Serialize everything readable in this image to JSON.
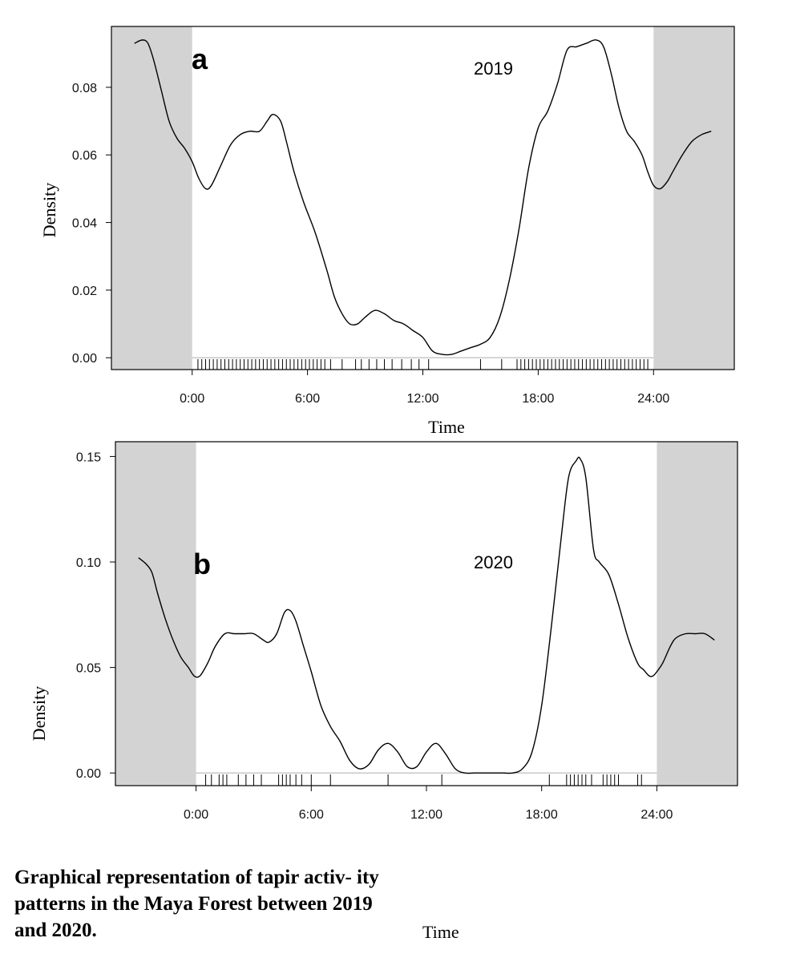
{
  "caption": "Graphical representation of tapir activ- ity patterns in the Maya Forest between 2019 and 2020.",
  "bottom_label": "Time",
  "chart_data": [
    {
      "type": "line",
      "panel": "a",
      "title": "2019",
      "xlabel": "Time",
      "ylabel": "Density",
      "xlim": [
        -4.2,
        28.2
      ],
      "ylim": [
        -0.0035,
        0.098
      ],
      "x_tick_labels": [
        "0:00",
        "6:00",
        "12:00",
        "18:00",
        "24:00"
      ],
      "x_tick_values": [
        0,
        6,
        12,
        18,
        24
      ],
      "y_ticks": [
        0.0,
        0.02,
        0.04,
        0.06,
        0.08
      ],
      "y_tick_labels": [
        "0.00",
        "0.02",
        "0.04",
        "0.06",
        "0.08"
      ],
      "shaded_x_ranges": [
        [
          -4.2,
          0
        ],
        [
          24,
          28.2
        ]
      ],
      "baseline": 0,
      "x": [
        -3.0,
        -2.6,
        -2.3,
        -2.0,
        -1.6,
        -1.2,
        -0.8,
        -0.4,
        0.0,
        0.35,
        0.7,
        1.0,
        1.5,
        2.0,
        2.5,
        3.0,
        3.5,
        3.9,
        4.2,
        4.6,
        4.9,
        5.3,
        5.8,
        6.4,
        7.0,
        7.4,
        7.8,
        8.2,
        8.6,
        9.0,
        9.5,
        10.0,
        10.5,
        11.0,
        11.5,
        12.0,
        12.5,
        13.0,
        13.5,
        14.0,
        14.5,
        15.0,
        15.5,
        16.0,
        16.5,
        17.0,
        17.5,
        18.0,
        18.5,
        19.0,
        19.5,
        20.0,
        20.5,
        21.0,
        21.4,
        21.8,
        22.2,
        22.6,
        23.0,
        23.4,
        23.7,
        24.0,
        24.35,
        24.7,
        25.0,
        25.5,
        26.0,
        26.5,
        27.0
      ],
      "y": [
        0.093,
        0.094,
        0.093,
        0.088,
        0.079,
        0.07,
        0.065,
        0.062,
        0.058,
        0.053,
        0.05,
        0.051,
        0.057,
        0.063,
        0.066,
        0.067,
        0.067,
        0.07,
        0.072,
        0.07,
        0.064,
        0.055,
        0.046,
        0.037,
        0.026,
        0.018,
        0.013,
        0.01,
        0.01,
        0.012,
        0.014,
        0.013,
        0.011,
        0.01,
        0.008,
        0.006,
        0.002,
        0.001,
        0.001,
        0.002,
        0.003,
        0.004,
        0.006,
        0.012,
        0.023,
        0.038,
        0.056,
        0.068,
        0.073,
        0.081,
        0.091,
        0.092,
        0.093,
        0.094,
        0.092,
        0.084,
        0.074,
        0.067,
        0.064,
        0.06,
        0.055,
        0.051,
        0.05,
        0.052,
        0.055,
        0.06,
        0.064,
        0.066,
        0.067
      ],
      "rug": [
        0.3,
        0.5,
        0.7,
        0.9,
        1.1,
        1.3,
        1.5,
        1.7,
        1.9,
        2.1,
        2.3,
        2.5,
        2.7,
        2.9,
        3.1,
        3.3,
        3.5,
        3.7,
        3.9,
        4.1,
        4.3,
        4.5,
        4.7,
        4.9,
        5.1,
        5.3,
        5.5,
        5.7,
        5.9,
        6.1,
        6.3,
        6.5,
        6.7,
        6.9,
        7.2,
        7.8,
        8.5,
        8.8,
        9.2,
        9.6,
        10.0,
        10.4,
        10.9,
        11.4,
        11.8,
        12.3,
        15.0,
        16.1,
        16.9,
        17.1,
        17.3,
        17.5,
        17.7,
        17.9,
        18.1,
        18.3,
        18.5,
        18.7,
        18.9,
        19.1,
        19.3,
        19.5,
        19.7,
        19.9,
        20.1,
        20.3,
        20.5,
        20.7,
        20.9,
        21.1,
        21.3,
        21.5,
        21.7,
        21.9,
        22.1,
        22.3,
        22.5,
        22.7,
        22.9,
        23.1,
        23.3,
        23.5,
        23.7
      ]
    },
    {
      "type": "line",
      "panel": "b",
      "title": "2020",
      "xlabel": "",
      "ylabel": "Density",
      "xlim": [
        -4.2,
        28.2
      ],
      "ylim": [
        -0.006,
        0.157
      ],
      "x_tick_labels": [
        "0:00",
        "6:00",
        "12:00",
        "18:00",
        "24:00"
      ],
      "x_tick_values": [
        0,
        6,
        12,
        18,
        24
      ],
      "y_ticks": [
        0.0,
        0.05,
        0.1,
        0.15
      ],
      "y_tick_labels": [
        "0.00",
        "0.05",
        "0.10",
        "0.15"
      ],
      "shaded_x_ranges": [
        [
          -4.2,
          0
        ],
        [
          24,
          28.2
        ]
      ],
      "baseline": 0,
      "x": [
        -3.0,
        -2.6,
        -2.3,
        -2.0,
        -1.6,
        -1.2,
        -0.8,
        -0.4,
        -0.1,
        0.2,
        0.6,
        1.0,
        1.5,
        2.0,
        2.5,
        3.0,
        3.5,
        3.8,
        4.2,
        4.6,
        4.9,
        5.2,
        5.6,
        6.0,
        6.5,
        7.0,
        7.5,
        8.0,
        8.5,
        9.0,
        9.5,
        10.0,
        10.5,
        11.0,
        11.5,
        12.0,
        12.5,
        13.0,
        13.5,
        14.0,
        14.5,
        15.0,
        15.5,
        16.0,
        16.5,
        17.0,
        17.5,
        18.0,
        18.5,
        19.0,
        19.4,
        19.8,
        20.0,
        20.3,
        20.7,
        21.0,
        21.5,
        22.0,
        22.5,
        23.0,
        23.3,
        23.6,
        23.8,
        24.0,
        24.3,
        24.7,
        25.0,
        25.5,
        26.0,
        26.5,
        27.0
      ],
      "y": [
        0.102,
        0.099,
        0.095,
        0.085,
        0.073,
        0.063,
        0.055,
        0.05,
        0.046,
        0.046,
        0.052,
        0.06,
        0.066,
        0.066,
        0.066,
        0.066,
        0.063,
        0.062,
        0.066,
        0.076,
        0.077,
        0.072,
        0.06,
        0.048,
        0.032,
        0.022,
        0.015,
        0.006,
        0.002,
        0.004,
        0.011,
        0.014,
        0.01,
        0.003,
        0.003,
        0.01,
        0.014,
        0.009,
        0.002,
        0.0,
        0.0,
        0.0,
        0.0,
        0.0,
        0.0,
        0.002,
        0.01,
        0.032,
        0.069,
        0.11,
        0.14,
        0.148,
        0.149,
        0.14,
        0.106,
        0.1,
        0.094,
        0.08,
        0.064,
        0.052,
        0.049,
        0.046,
        0.046,
        0.048,
        0.052,
        0.06,
        0.064,
        0.066,
        0.066,
        0.066,
        0.063
      ],
      "rug": [
        0.5,
        0.8,
        1.2,
        1.4,
        1.6,
        2.2,
        2.6,
        3.0,
        3.4,
        4.3,
        4.5,
        4.7,
        4.9,
        5.2,
        5.5,
        6.0,
        7.0,
        10.0,
        12.8,
        18.4,
        19.3,
        19.5,
        19.7,
        19.9,
        20.1,
        20.3,
        20.6,
        21.2,
        21.4,
        21.6,
        21.8,
        22.0,
        23.0,
        23.2
      ]
    }
  ]
}
